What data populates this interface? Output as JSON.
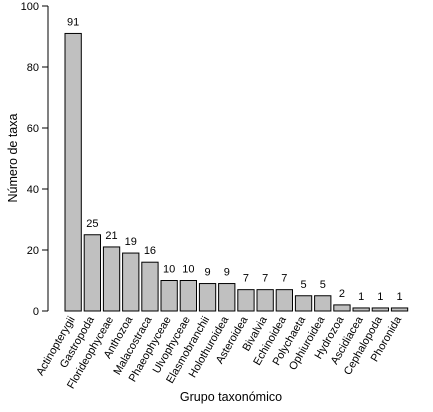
{
  "chart_data": {
    "type": "bar",
    "title": "",
    "xlabel": "Grupo taxonómico",
    "ylabel": "Número de taxa",
    "ylim": [
      0,
      100
    ],
    "yticks": [
      0,
      20,
      40,
      60,
      80,
      100
    ],
    "grid": false,
    "bar_color": "#c0c0c0",
    "bar_edge_color": "#000000",
    "categories": [
      "Actinopterygii",
      "Gastropoda",
      "Florideophyceae",
      "Anthozoa",
      "Malacostraca",
      "Phaeophyceae",
      "Ulvophyceae",
      "Elasmobranchii",
      "Holothuroidea",
      "Asteroidea",
      "Bivalvia",
      "Echinoidea",
      "Polychaeta",
      "Ophiuroidea",
      "Hydrozoa",
      "Ascidiacea",
      "Cephalopoda",
      "Phoronida"
    ],
    "values": [
      91,
      25,
      21,
      19,
      16,
      10,
      10,
      9,
      9,
      7,
      7,
      7,
      5,
      5,
      2,
      1,
      1,
      1
    ]
  }
}
